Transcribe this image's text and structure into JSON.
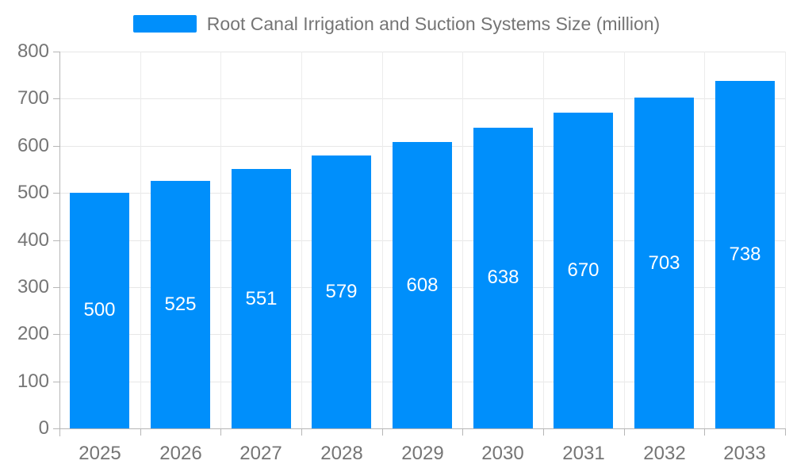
{
  "legend": {
    "label": "Root Canal Irrigation and Suction Systems Size (million)"
  },
  "chart_data": {
    "type": "bar",
    "title": "Root Canal Irrigation and Suction Systems Size (million)",
    "categories": [
      "2025",
      "2026",
      "2027",
      "2028",
      "2029",
      "2030",
      "2031",
      "2032",
      "2033"
    ],
    "values": [
      500,
      525,
      551,
      579,
      608,
      638,
      670,
      703,
      738
    ],
    "xlabel": "",
    "ylabel": "",
    "ylim": [
      0,
      800
    ],
    "yticks": [
      0,
      100,
      200,
      300,
      400,
      500,
      600,
      700,
      800
    ],
    "grid": true,
    "legend_position": "top",
    "colors": {
      "bar": "#008FFB",
      "bar_value_label": "#ffffff",
      "axis_label": "#757575",
      "legend_text": "#757575",
      "gridline": "#e7e7e7",
      "axis_line": "#b6b6b6"
    }
  }
}
